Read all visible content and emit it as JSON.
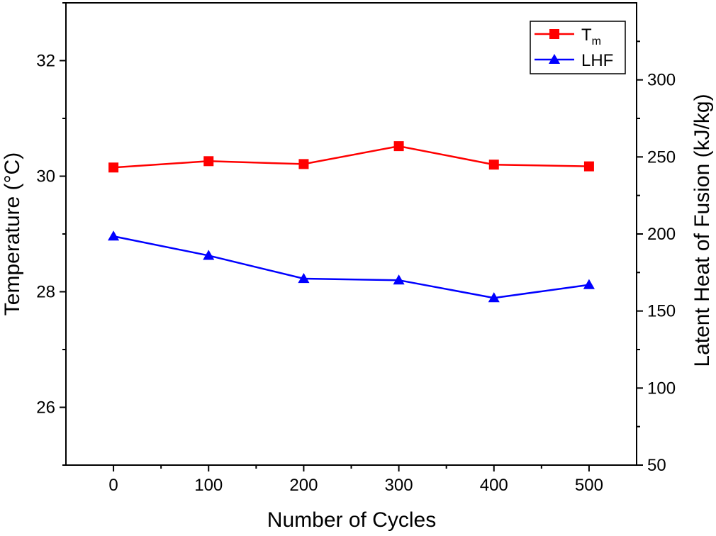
{
  "chart_data": {
    "type": "line",
    "xlabel": "Number of Cycles",
    "ylabel_left": "Temperature (°C)",
    "ylabel_right": "Latent Heat of Fusion (kJ/kg)",
    "xlim": [
      -50,
      550
    ],
    "ylim_left": [
      25,
      33
    ],
    "ylim_right": [
      50,
      350
    ],
    "x_ticks": [
      0,
      100,
      200,
      300,
      400,
      500
    ],
    "x_tick_labels": [
      "0",
      "100",
      "200",
      "300",
      "400",
      "500"
    ],
    "y_left_ticks": [
      26,
      28,
      30,
      32
    ],
    "y_left_tick_labels": [
      "26",
      "28",
      "30",
      "32"
    ],
    "y_right_ticks": [
      50,
      100,
      150,
      200,
      250,
      300
    ],
    "y_right_tick_labels": [
      "50",
      "100",
      "150",
      "200",
      "250",
      "300"
    ],
    "grid": false,
    "legend_position": "top-right",
    "series": [
      {
        "name": "T",
        "name_subscript": "m",
        "axis": "left",
        "marker": "square",
        "color": "#ff0000",
        "x": [
          0,
          100,
          200,
          300,
          400,
          500
        ],
        "y": [
          30.15,
          30.26,
          30.21,
          30.52,
          30.2,
          30.17
        ]
      },
      {
        "name": "LHF",
        "axis": "right",
        "marker": "triangle",
        "color": "#0000ff",
        "x": [
          0,
          100,
          200,
          300,
          400,
          500
        ],
        "y": [
          198.5,
          186,
          171,
          170,
          158.5,
          167
        ]
      }
    ]
  }
}
